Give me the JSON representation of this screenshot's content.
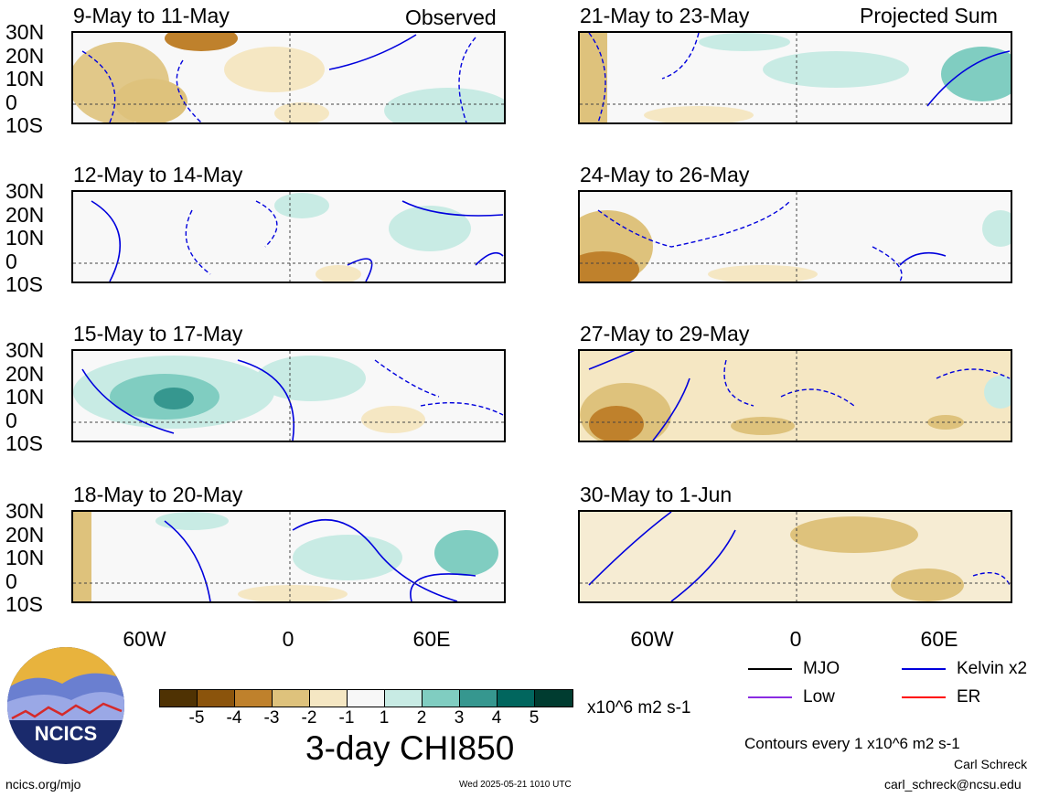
{
  "panels": [
    {
      "title": "9-May to 11-May",
      "corner": "Observed",
      "col": 0,
      "row": 0
    },
    {
      "title": "12-May to 14-May",
      "corner": "",
      "col": 0,
      "row": 1
    },
    {
      "title": "15-May to 17-May",
      "corner": "",
      "col": 0,
      "row": 2
    },
    {
      "title": "18-May to 20-May",
      "corner": "",
      "col": 0,
      "row": 3
    },
    {
      "title": "21-May to 23-May",
      "corner": "Projected Sum",
      "col": 1,
      "row": 0
    },
    {
      "title": "24-May to 26-May",
      "corner": "",
      "col": 1,
      "row": 1
    },
    {
      "title": "27-May to 29-May",
      "corner": "",
      "col": 1,
      "row": 2
    },
    {
      "title": "30-May to 1-Jun",
      "corner": "",
      "col": 1,
      "row": 3
    }
  ],
  "lat_labels": [
    "30N",
    "20N",
    "10N",
    "0",
    "10S"
  ],
  "lon_labels": [
    "60W",
    "0",
    "60E"
  ],
  "colorbar": {
    "title": "3-day CHI850",
    "units": "x10^6 m2 s-1",
    "tick_labels": [
      "-5",
      "-4",
      "-3",
      "-2",
      "-1",
      "1",
      "2",
      "3",
      "4",
      "5"
    ],
    "colors": [
      "#4f3203",
      "#8b540c",
      "#bf812c",
      "#dec27c",
      "#f5e7c3",
      "#f7f7f7",
      "#c8ebe4",
      "#80cdc1",
      "#36978f",
      "#01665e",
      "#003c30"
    ]
  },
  "legend": {
    "items": [
      {
        "label": "MJO",
        "color": "#000000"
      },
      {
        "label": "Kelvin x2",
        "color": "#0000dd"
      },
      {
        "label": "Low",
        "color": "#8a2be2"
      },
      {
        "label": "ER",
        "color": "#ff0000"
      }
    ],
    "contour_note": "Contours every 1 x10^6 m2 s-1"
  },
  "logo": {
    "text": "NCICS"
  },
  "footer": {
    "site": "ncics.org/mjo",
    "timestamp": "Wed 2025-05-21 1010 UTC",
    "author": "Carl Schreck",
    "email": "carl_schreck@ncsu.edu"
  }
}
